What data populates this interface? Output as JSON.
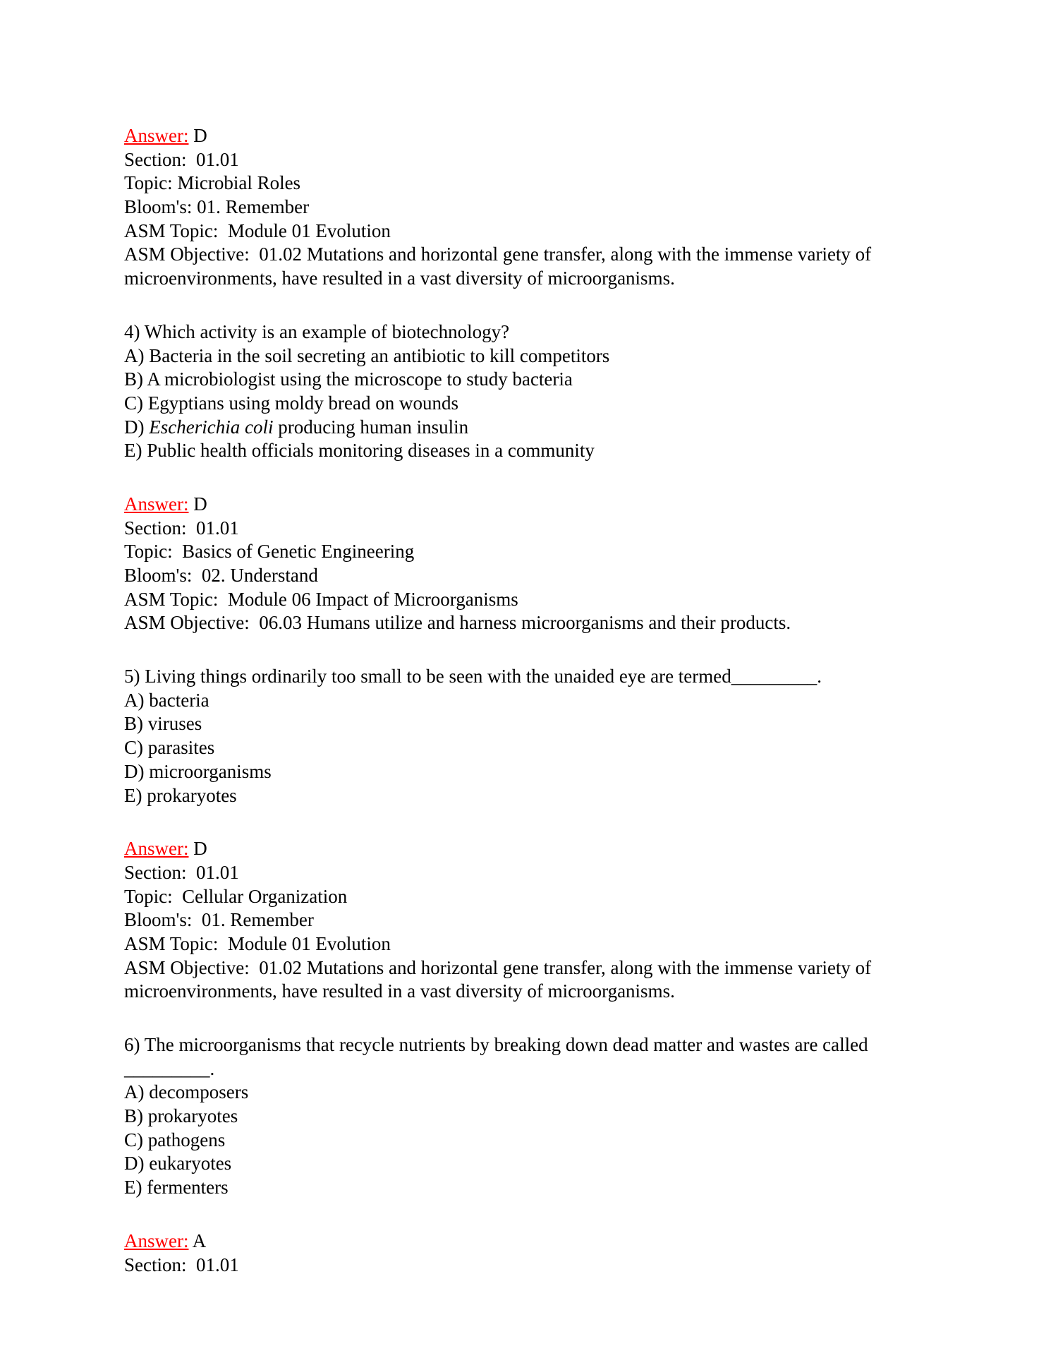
{
  "colors": {
    "answer_label": "#ff0000",
    "text": "#000000"
  },
  "blocks": [
    {
      "type": "answer",
      "label": "Answer:",
      "answer": "D",
      "lines": [
        "Section:  01.01",
        "Topic: Microbial Roles",
        "Bloom's: 01. Remember",
        "ASM Topic:  Module 01 Evolution",
        "ASM Objective:  01.02 Mutations and horizontal gene transfer, along with the immense variety of",
        "microenvironments, have resulted in a vast diversity of microorganisms."
      ]
    },
    {
      "type": "question",
      "lines": [
        "4) Which activity is an example of biotechnology?",
        "A) Bacteria in the soil secreting an antibiotic to kill competitors",
        "B) A microbiologist using the microscope to study bacteria",
        "C) Egyptians using moldy bread on wounds",
        {
          "prefix": "D) ",
          "italic": "Escherichia coli",
          "rest": " producing human insulin"
        },
        "E) Public health officials monitoring diseases in a community"
      ]
    },
    {
      "type": "answer",
      "label": "Answer:",
      "answer": "D",
      "lines": [
        "Section:  01.01",
        "Topic:  Basics of Genetic Engineering",
        "Bloom's:  02. Understand",
        "ASM Topic:  Module 06 Impact of Microorganisms",
        "ASM Objective:  06.03 Humans utilize and harness microorganisms and their products."
      ]
    },
    {
      "type": "question",
      "lines": [
        "5) Living things ordinarily too small to be seen with the unaided eye are termed_________.",
        "A) bacteria",
        "B) viruses",
        "C) parasites",
        "D) microorganisms",
        "E) prokaryotes"
      ]
    },
    {
      "type": "answer",
      "label": "Answer:",
      "answer": "D",
      "lines": [
        "Section:  01.01",
        "Topic:  Cellular Organization",
        "Bloom's:  01. Remember",
        "ASM Topic:  Module 01 Evolution",
        "ASM Objective:  01.02 Mutations and horizontal gene transfer, along with the immense variety of",
        "microenvironments, have resulted in a vast diversity of microorganisms."
      ]
    },
    {
      "type": "question",
      "lines": [
        "6) The microorganisms that recycle nutrients by breaking down dead matter and wastes are called",
        "_________.",
        "A) decomposers",
        "B) prokaryotes",
        "C) pathogens",
        "D) eukaryotes",
        "E) fermenters"
      ]
    },
    {
      "type": "answer",
      "label": "Answer:",
      "answer": "A",
      "lines": [
        "Section:  01.01"
      ]
    }
  ]
}
